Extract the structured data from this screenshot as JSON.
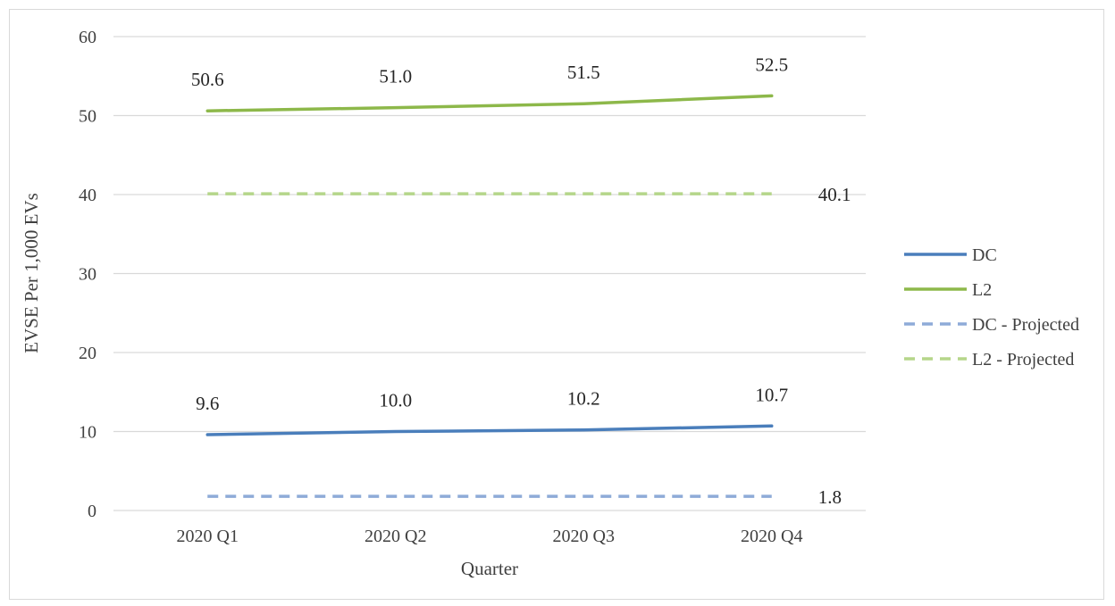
{
  "chart_data": {
    "type": "line",
    "categories": [
      "2020 Q1",
      "2020 Q2",
      "2020 Q3",
      "2020 Q4"
    ],
    "series": [
      {
        "name": "DC",
        "values": [
          9.6,
          10.0,
          10.2,
          10.7
        ],
        "color": "#4a7ebb",
        "dashed": false,
        "labels": [
          "9.6",
          "10.0",
          "10.2",
          "10.7"
        ]
      },
      {
        "name": "L2",
        "values": [
          50.6,
          51.0,
          51.5,
          52.5
        ],
        "color": "#8db84a",
        "dashed": false,
        "labels": [
          "50.6",
          "51.0",
          "51.5",
          "52.5"
        ]
      },
      {
        "name": "DC - Projected",
        "values": [
          1.8,
          1.8,
          1.8,
          1.8
        ],
        "color": "#8eabd8",
        "dashed": true,
        "end_label": "1.8"
      },
      {
        "name": "L2 - Projected",
        "values": [
          40.1,
          40.1,
          40.1,
          40.1
        ],
        "color": "#b5d68a",
        "dashed": true,
        "end_label": "40.1"
      }
    ],
    "xlabel": "Quarter",
    "ylabel": "EVSE Per 1,000 EVs",
    "ylim": [
      0,
      60
    ],
    "yticks": [
      0,
      10,
      20,
      30,
      40,
      50,
      60
    ],
    "ytick_labels": [
      "0",
      "10",
      "20",
      "30",
      "40",
      "50",
      "60"
    ],
    "grid": "horizontal",
    "legend_position": "right"
  }
}
